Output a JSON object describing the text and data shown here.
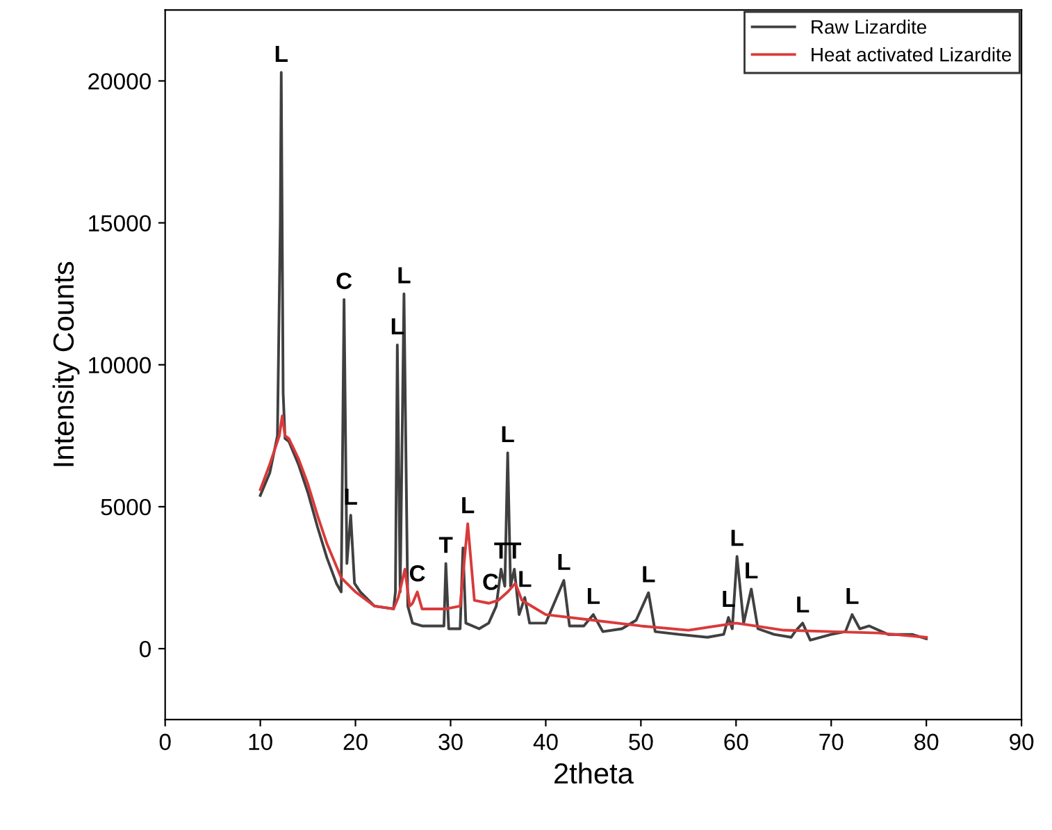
{
  "chart_data": {
    "type": "line",
    "xlabel": "2theta",
    "ylabel": "Intensity Counts",
    "xlim": [
      0,
      90
    ],
    "xticks": [
      0,
      10,
      20,
      30,
      40,
      50,
      60,
      70,
      80,
      90
    ],
    "ylim": [
      -2500,
      22500
    ],
    "yticks": [
      0,
      5000,
      10000,
      15000,
      20000
    ],
    "grid": false,
    "legend": "top right",
    "marker": "none",
    "line_style": "solid",
    "series": [
      {
        "name": "Raw Lizardite",
        "color": "#404040",
        "x": [
          10,
          11,
          11.8,
          12.1,
          12.2,
          12.4,
          12.6,
          13,
          14,
          15,
          16,
          17,
          18,
          18.5,
          18.8,
          19.1,
          19.5,
          19.9,
          20.5,
          22,
          24,
          24.2,
          24.4,
          24.7,
          25.1,
          25.5,
          26,
          27,
          28,
          29.3,
          29.5,
          29.8,
          31,
          31.3,
          31.6,
          33,
          34,
          34.8,
          35.3,
          35.7,
          36,
          36.3,
          36.7,
          37.2,
          37.8,
          38.3,
          40,
          41.9,
          42.5,
          44,
          45,
          46,
          48,
          49.5,
          50.8,
          51.5,
          54,
          57,
          58.7,
          59.2,
          59.6,
          60.1,
          60.8,
          61.6,
          62.3,
          64,
          65.8,
          66.2,
          67,
          67.8,
          70,
          71.5,
          72.2,
          73,
          74,
          76,
          78.5,
          80
        ],
        "values": [
          5400,
          6200,
          7500,
          15000,
          20300,
          9000,
          7400,
          7300,
          6500,
          5500,
          4300,
          3200,
          2300,
          2000,
          12300,
          3000,
          4700,
          2300,
          2000,
          1500,
          1400,
          2000,
          10700,
          2000,
          12500,
          1500,
          900,
          800,
          800,
          800,
          3000,
          700,
          700,
          3550,
          900,
          700,
          900,
          1500,
          2800,
          2200,
          6900,
          2200,
          2800,
          1200,
          1800,
          900,
          900,
          2400,
          800,
          800,
          1200,
          600,
          700,
          1000,
          1970,
          600,
          500,
          400,
          500,
          1100,
          700,
          3250,
          900,
          2100,
          700,
          500,
          400,
          600,
          900,
          300,
          500,
          600,
          1200,
          700,
          800,
          500,
          500,
          350
        ]
      },
      {
        "name": "Heat activated Lizardite",
        "color": "#d93a3a",
        "x": [
          10,
          11,
          12,
          12.3,
          12.6,
          13,
          14,
          15,
          16,
          17,
          18.5,
          20,
          22,
          24,
          24.5,
          25.2,
          25.7,
          26,
          26.5,
          27,
          29.5,
          31,
          31.8,
          32.5,
          34,
          35,
          36,
          36.8,
          37.5,
          38,
          40,
          45,
          50,
          55,
          60,
          62,
          65,
          70,
          75,
          80
        ],
        "values": [
          5600,
          6500,
          7500,
          8200,
          7500,
          7400,
          6700,
          5800,
          4700,
          3700,
          2500,
          2000,
          1500,
          1400,
          1800,
          2800,
          1500,
          1600,
          2000,
          1400,
          1400,
          1500,
          4400,
          1700,
          1600,
          1700,
          2000,
          2300,
          1700,
          1600,
          1200,
          1000,
          800,
          650,
          900,
          800,
          650,
          600,
          550,
          400
        ]
      }
    ],
    "annotations": [
      {
        "text": "L",
        "x": 12.2,
        "y": 20300
      },
      {
        "text": "C",
        "x": 18.8,
        "y": 12300
      },
      {
        "text": "L",
        "x": 19.5,
        "y": 4700
      },
      {
        "text": "L",
        "x": 24.4,
        "y": 10700
      },
      {
        "text": "L",
        "x": 25.1,
        "y": 12500
      },
      {
        "text": "C",
        "x": 26.5,
        "y": 2000
      },
      {
        "text": "T",
        "x": 29.5,
        "y": 3000
      },
      {
        "text": "L",
        "x": 31.8,
        "y": 4400
      },
      {
        "text": "C",
        "x": 34.2,
        "y": 1700
      },
      {
        "text": "T",
        "x": 35.3,
        "y": 2800
      },
      {
        "text": "L",
        "x": 36,
        "y": 6900
      },
      {
        "text": "T",
        "x": 36.7,
        "y": 2800
      },
      {
        "text": "L",
        "x": 37.8,
        "y": 1800
      },
      {
        "text": "L",
        "x": 41.9,
        "y": 2400
      },
      {
        "text": "L",
        "x": 45,
        "y": 1200
      },
      {
        "text": "L",
        "x": 50.8,
        "y": 1970
      },
      {
        "text": "L",
        "x": 59.2,
        "y": 1100
      },
      {
        "text": "L",
        "x": 60.1,
        "y": 3250
      },
      {
        "text": "L",
        "x": 61.6,
        "y": 2100
      },
      {
        "text": "L",
        "x": 67,
        "y": 900
      },
      {
        "text": "L",
        "x": 72.2,
        "y": 1200
      }
    ]
  }
}
